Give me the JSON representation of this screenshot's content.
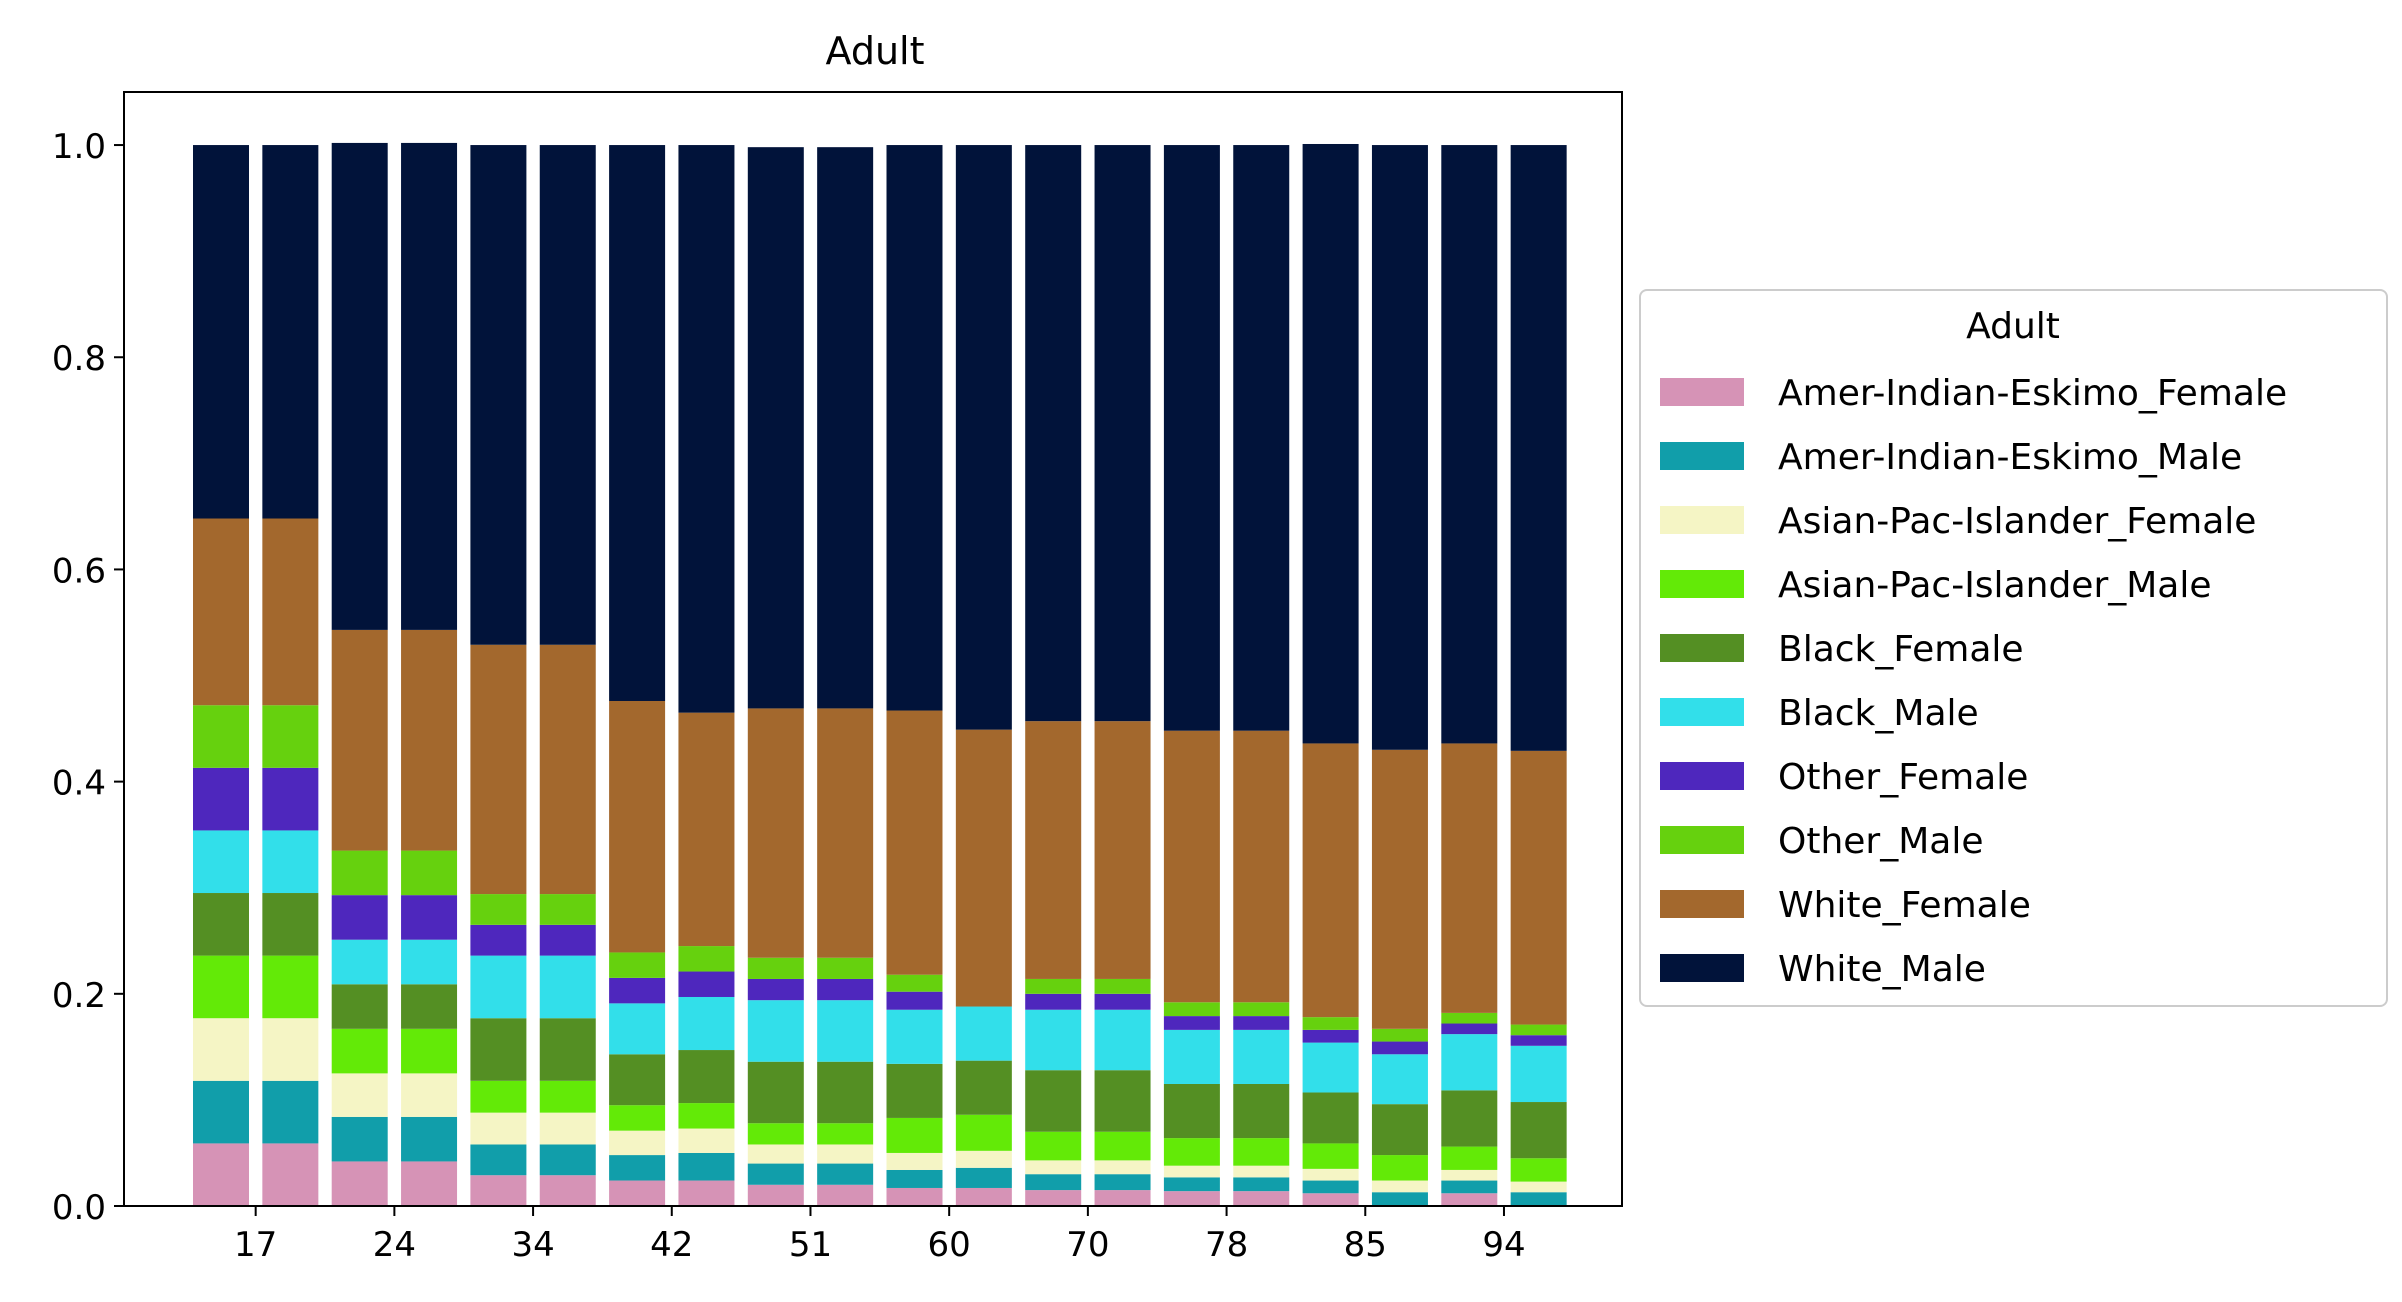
{
  "chart_data": {
    "type": "bar",
    "stacked": true,
    "normalized": true,
    "title": "Adult",
    "xlabel": "",
    "ylabel": "",
    "ylim": [
      0,
      1.05
    ],
    "yticks": [
      "0.0",
      "0.2",
      "0.4",
      "0.6",
      "0.8",
      "1.0"
    ],
    "grid": false,
    "legend": {
      "title": "Adult",
      "placement": "center-right, outside plot"
    },
    "categories": [
      "17",
      "",
      "24",
      "",
      "34",
      "",
      "42",
      "",
      "51",
      "",
      "60",
      "",
      "70",
      "",
      "78",
      "",
      "85",
      "",
      "94",
      ""
    ],
    "series": [
      {
        "name": "Amer-Indian-Eskimo_Female",
        "color": "#d693b6",
        "values": [
          0.059,
          0.059,
          0.042,
          0.042,
          0.029,
          0.029,
          0.024,
          0.024,
          0.02,
          0.02,
          0.017,
          0.017,
          0.015,
          0.015,
          0.014,
          0.014,
          0.012,
          0.0,
          0.012,
          0.0
        ]
      },
      {
        "name": "Amer-Indian-Eskimo_Male",
        "color": "#119eaa",
        "values": [
          0.059,
          0.059,
          0.042,
          0.042,
          0.029,
          0.029,
          0.024,
          0.026,
          0.02,
          0.02,
          0.017,
          0.019,
          0.015,
          0.015,
          0.013,
          0.013,
          0.012,
          0.013,
          0.012,
          0.013
        ]
      },
      {
        "name": "Asian-Pac-Islander_Female",
        "color": "#f5f5c5",
        "values": [
          0.059,
          0.059,
          0.041,
          0.041,
          0.03,
          0.03,
          0.023,
          0.023,
          0.018,
          0.018,
          0.016,
          0.016,
          0.013,
          0.013,
          0.011,
          0.011,
          0.011,
          0.011,
          0.01,
          0.01
        ]
      },
      {
        "name": "Asian-Pac-Islander_Male",
        "color": "#63ea07",
        "values": [
          0.059,
          0.059,
          0.042,
          0.042,
          0.03,
          0.03,
          0.024,
          0.024,
          0.02,
          0.02,
          0.033,
          0.034,
          0.027,
          0.027,
          0.026,
          0.026,
          0.024,
          0.024,
          0.022,
          0.022
        ]
      },
      {
        "name": "Black_Female",
        "color": "#548f23",
        "values": [
          0.059,
          0.059,
          0.042,
          0.042,
          0.059,
          0.059,
          0.048,
          0.05,
          0.058,
          0.058,
          0.051,
          0.051,
          0.058,
          0.058,
          0.051,
          0.051,
          0.048,
          0.048,
          0.053,
          0.053
        ]
      },
      {
        "name": "Black_Male",
        "color": "#32dfea",
        "values": [
          0.059,
          0.059,
          0.042,
          0.042,
          0.059,
          0.059,
          0.048,
          0.05,
          0.058,
          0.058,
          0.051,
          0.051,
          0.057,
          0.057,
          0.051,
          0.051,
          0.047,
          0.047,
          0.053,
          0.053
        ]
      },
      {
        "name": "Other_Female",
        "color": "#4e27bd",
        "values": [
          0.059,
          0.059,
          0.042,
          0.042,
          0.029,
          0.029,
          0.024,
          0.024,
          0.02,
          0.02,
          0.017,
          0.0,
          0.015,
          0.015,
          0.013,
          0.013,
          0.012,
          0.012,
          0.01,
          0.01
        ]
      },
      {
        "name": "Other_Male",
        "color": "#66d10e",
        "values": [
          0.059,
          0.059,
          0.042,
          0.042,
          0.029,
          0.029,
          0.024,
          0.024,
          0.02,
          0.02,
          0.016,
          0.0,
          0.014,
          0.014,
          0.013,
          0.013,
          0.012,
          0.012,
          0.01,
          0.01
        ]
      },
      {
        "name": "White_Female",
        "color": "#a3682d",
        "values": [
          0.176,
          0.176,
          0.208,
          0.208,
          0.235,
          0.235,
          0.237,
          0.22,
          0.235,
          0.235,
          0.249,
          0.261,
          0.243,
          0.243,
          0.256,
          0.256,
          0.258,
          0.263,
          0.254,
          0.258
        ]
      },
      {
        "name": "White_Male",
        "color": "#01133a",
        "values": [
          0.352,
          0.352,
          0.459,
          0.459,
          0.471,
          0.471,
          0.524,
          0.535,
          0.529,
          0.529,
          0.533,
          0.551,
          0.543,
          0.543,
          0.552,
          0.552,
          0.565,
          0.57,
          0.564,
          0.571
        ]
      }
    ]
  }
}
